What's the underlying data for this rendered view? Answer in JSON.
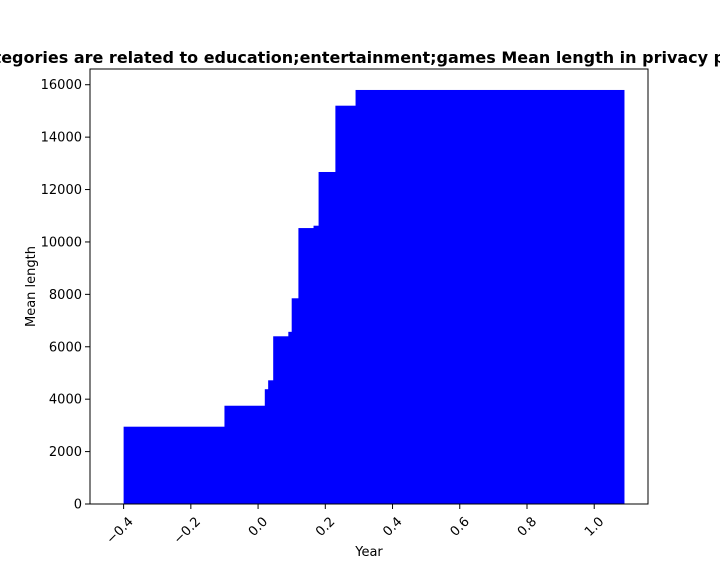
{
  "chart_data": {
    "type": "bar",
    "title": "Categories are related to education;entertainment;games Mean length in privacy policy",
    "xlabel": "Year",
    "ylabel": "Mean length",
    "xlim": [
      -0.5,
      1.16
    ],
    "ylim": [
      0,
      16600
    ],
    "x_ticks": [
      -0.4,
      -0.2,
      0.0,
      0.2,
      0.4,
      0.6,
      0.8,
      1.0
    ],
    "x_tick_labels": [
      "−0.4",
      "−0.2",
      "0.0",
      "0.2",
      "0.4",
      "0.6",
      "0.8",
      "1.0"
    ],
    "y_ticks": [
      0,
      2000,
      4000,
      6000,
      8000,
      10000,
      12000,
      14000,
      16000
    ],
    "y_tick_labels": [
      "0",
      "2000",
      "4000",
      "6000",
      "8000",
      "10000",
      "12000",
      "14000",
      "16000"
    ],
    "bar_color": "#0000ff",
    "bar_width": 0.8,
    "grid": false,
    "x": [
      0.0,
      0.3,
      0.42,
      0.43,
      0.445,
      0.49,
      0.5,
      0.52,
      0.565,
      0.58,
      0.63,
      0.69
    ],
    "values": [
      2950,
      3750,
      4380,
      4720,
      6400,
      6570,
      7850,
      10530,
      10620,
      12670,
      15200,
      15800
    ]
  }
}
